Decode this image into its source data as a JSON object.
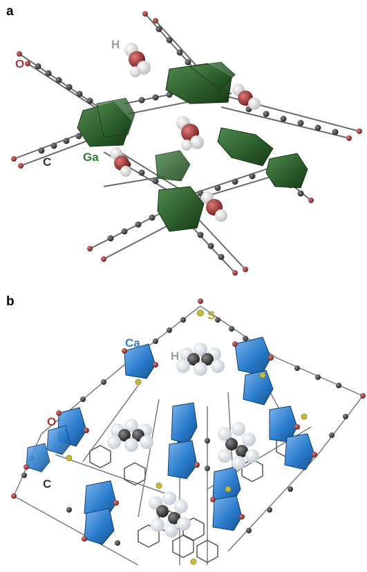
{
  "panel_a": {
    "label": "a",
    "atoms": {
      "H": "H",
      "O": "O",
      "C": "C",
      "Ga": "Ga"
    },
    "colors": {
      "H": "#9e9e9e",
      "O": "#a33a3a",
      "C": "#333333",
      "Ga": "#2e7d32",
      "polyhedra": "#2f5d2f"
    }
  },
  "panel_b": {
    "label": "b",
    "atoms": {
      "S": "S",
      "Ca": "Ca",
      "H": "H",
      "O": "O",
      "C": "C"
    },
    "colors": {
      "S": "#b0a52a",
      "Ca": "#2f7fd0",
      "H": "#9e9e9e",
      "O": "#a33a3a",
      "C": "#333333",
      "polyhedra": "#2a7ccc"
    }
  }
}
